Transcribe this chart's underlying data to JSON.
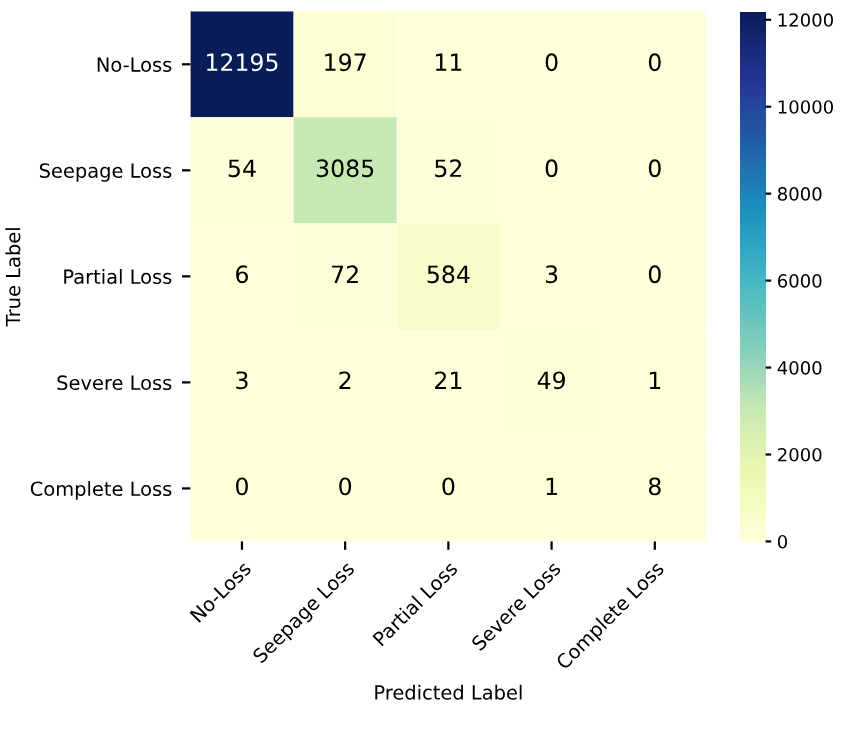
{
  "chart_data": {
    "type": "heatmap",
    "xlabel": "Predicted Label",
    "ylabel": "True Label",
    "categories": [
      "No-Loss",
      "Seepage Loss",
      "Partial Loss",
      "Severe Loss",
      "Complete Loss"
    ],
    "y_categories": [
      "No-Loss",
      "Seepage Loss",
      "Partial Loss",
      "Severe Loss",
      "Complete Loss"
    ],
    "cells": [
      [
        12195,
        197,
        11,
        0,
        0
      ],
      [
        54,
        3085,
        52,
        0,
        0
      ],
      [
        6,
        72,
        584,
        3,
        0
      ],
      [
        3,
        2,
        21,
        49,
        1
      ],
      [
        0,
        0,
        0,
        1,
        8
      ]
    ],
    "data_labels": true,
    "clim": [
      0,
      12195
    ],
    "cticks": [
      0,
      2000,
      4000,
      6000,
      8000,
      10000,
      12000
    ]
  }
}
